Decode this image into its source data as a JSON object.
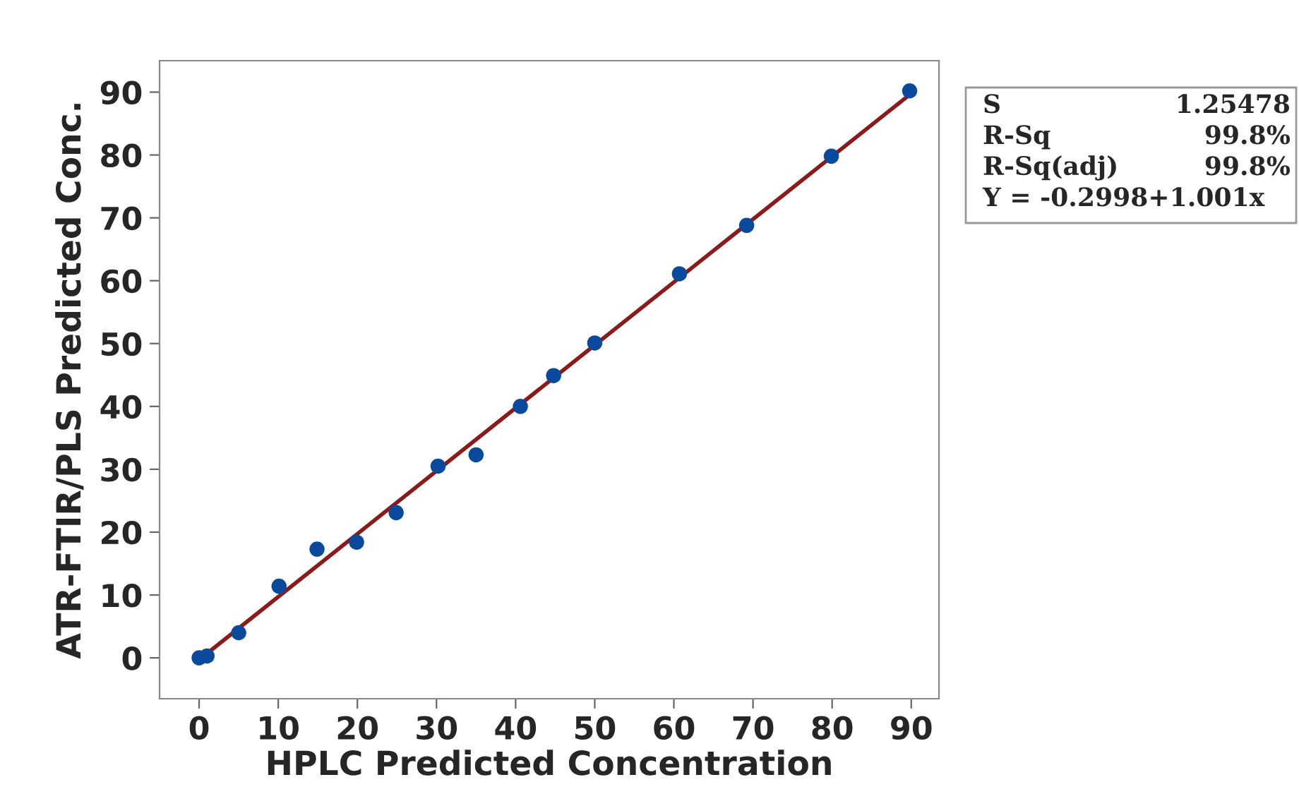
{
  "chart_data": {
    "type": "scatter",
    "xlabel": "HPLC Predicted Concentration",
    "ylabel": "ATR-FTIR/PLS Predicted Conc.",
    "xlim": [
      -5,
      93.5
    ],
    "ylim": [
      -6.5,
      95
    ],
    "xticks": [
      0,
      10,
      20,
      30,
      40,
      50,
      60,
      70,
      80,
      90
    ],
    "yticks": [
      0,
      10,
      20,
      30,
      40,
      50,
      60,
      70,
      80,
      90
    ],
    "grid": false,
    "legend": false,
    "marker": "circle",
    "series": [
      {
        "color": "#0a4a9c",
        "x": [
          0,
          1,
          5,
          10.1,
          14.9,
          19.9,
          24.9,
          30.2,
          35.0,
          40.6,
          44.8,
          50.0,
          60.7,
          69.2,
          79.9,
          89.8
        ],
        "values": [
          0,
          0.3,
          4.0,
          11.4,
          17.3,
          18.4,
          23.1,
          30.5,
          32.3,
          40.0,
          44.9,
          50.1,
          61.1,
          68.8,
          79.8,
          90.2
        ]
      },
      {
        "type": "line",
        "color": "#8b1a1a",
        "line_style": "solid",
        "marker": "none",
        "x": [
          0,
          90
        ],
        "values": [
          -0.3,
          89.8
        ]
      }
    ],
    "annotations": [
      "S",
      "1.25478",
      "R-Sq",
      "99.8%",
      "R-Sq(adj)",
      "99.8%",
      "Y = -0.2998+1.001x"
    ]
  }
}
